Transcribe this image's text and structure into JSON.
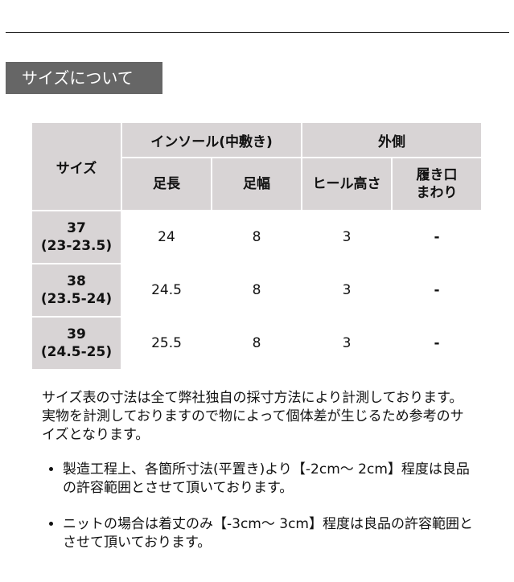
{
  "section_title": "サイズについて",
  "table": {
    "header_size": "サイズ",
    "group_insole": "インソール(中敷き)",
    "group_outer": "外側",
    "col_length": "足長",
    "col_width": "足幅",
    "col_heel": "ヒール高さ",
    "col_opening_1": "履き口",
    "col_opening_2": "まわり",
    "rows": [
      {
        "size": "37",
        "range": "(23-23.5)",
        "length": "24",
        "width": "8",
        "heel": "3",
        "opening": "-"
      },
      {
        "size": "38",
        "range": "(23.5-24)",
        "length": "24.5",
        "width": "8",
        "heel": "3",
        "opening": "-"
      },
      {
        "size": "39",
        "range": "(24.5-25)",
        "length": "25.5",
        "width": "8",
        "heel": "3",
        "opening": "-"
      }
    ]
  },
  "notes": {
    "para1": "サイズ表の寸法は全て弊社独自の採寸方法により計測しております。",
    "para2": "実物を計測しておりますので物によって個体差が生じるため参考のサイズとなります。",
    "bullets": [
      "製造工程上、各箇所寸法(平置き)より【-2cm～ 2cm】程度は良品の許容範囲とさせて頂いております。",
      "ニットの場合は着丈のみ【-3cm～ 3cm】程度は良品の許容範囲とさせて頂いております。"
    ]
  }
}
